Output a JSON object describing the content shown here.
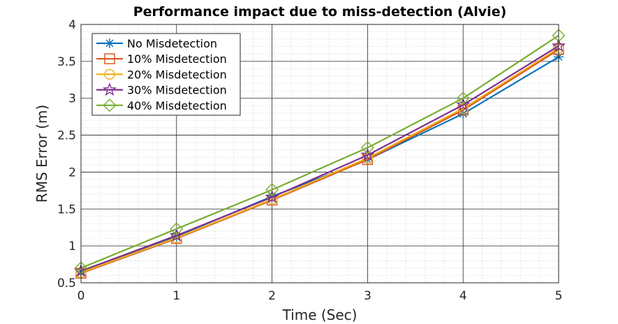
{
  "chart_data": {
    "type": "line",
    "title": "Performance impact due to miss-detection (Alvie)",
    "xlabel": "Time (Sec)",
    "ylabel": "RMS Error (m)",
    "xlim": [
      0,
      5
    ],
    "ylim": [
      0.5,
      4
    ],
    "xticks": [
      0,
      1,
      2,
      3,
      4,
      5
    ],
    "yticks": [
      0.5,
      1,
      1.5,
      2,
      2.5,
      3,
      3.5,
      4
    ],
    "xtick_labels": [
      "0",
      "1",
      "2",
      "3",
      "4",
      "5"
    ],
    "ytick_labels": [
      "0.5",
      "1",
      "1.5",
      "2",
      "2.5",
      "3",
      "3.5",
      "4"
    ],
    "grid": "major and minor",
    "legend_position": "top-left",
    "x": [
      0,
      1,
      2,
      3,
      4,
      5
    ],
    "series": [
      {
        "name": "No Misdetection",
        "color": "#0072BD",
        "marker": "asterisk",
        "values": [
          0.65,
          1.13,
          1.67,
          2.17,
          2.79,
          3.56
        ]
      },
      {
        "name": "10% Misdetection",
        "color": "#D95319",
        "marker": "square",
        "values": [
          0.63,
          1.1,
          1.62,
          2.17,
          2.84,
          3.66
        ]
      },
      {
        "name": "20% Misdetection",
        "color": "#EDB120",
        "marker": "circle",
        "values": [
          0.64,
          1.11,
          1.63,
          2.19,
          2.86,
          3.68
        ]
      },
      {
        "name": "30% Misdetection",
        "color": "#7E2F8E",
        "marker": "pentagram",
        "values": [
          0.66,
          1.14,
          1.66,
          2.23,
          2.91,
          3.71
        ]
      },
      {
        "name": "40% Misdetection",
        "color": "#77AC30",
        "marker": "diamond",
        "values": [
          0.7,
          1.23,
          1.76,
          2.33,
          3.0,
          3.85
        ]
      }
    ]
  }
}
